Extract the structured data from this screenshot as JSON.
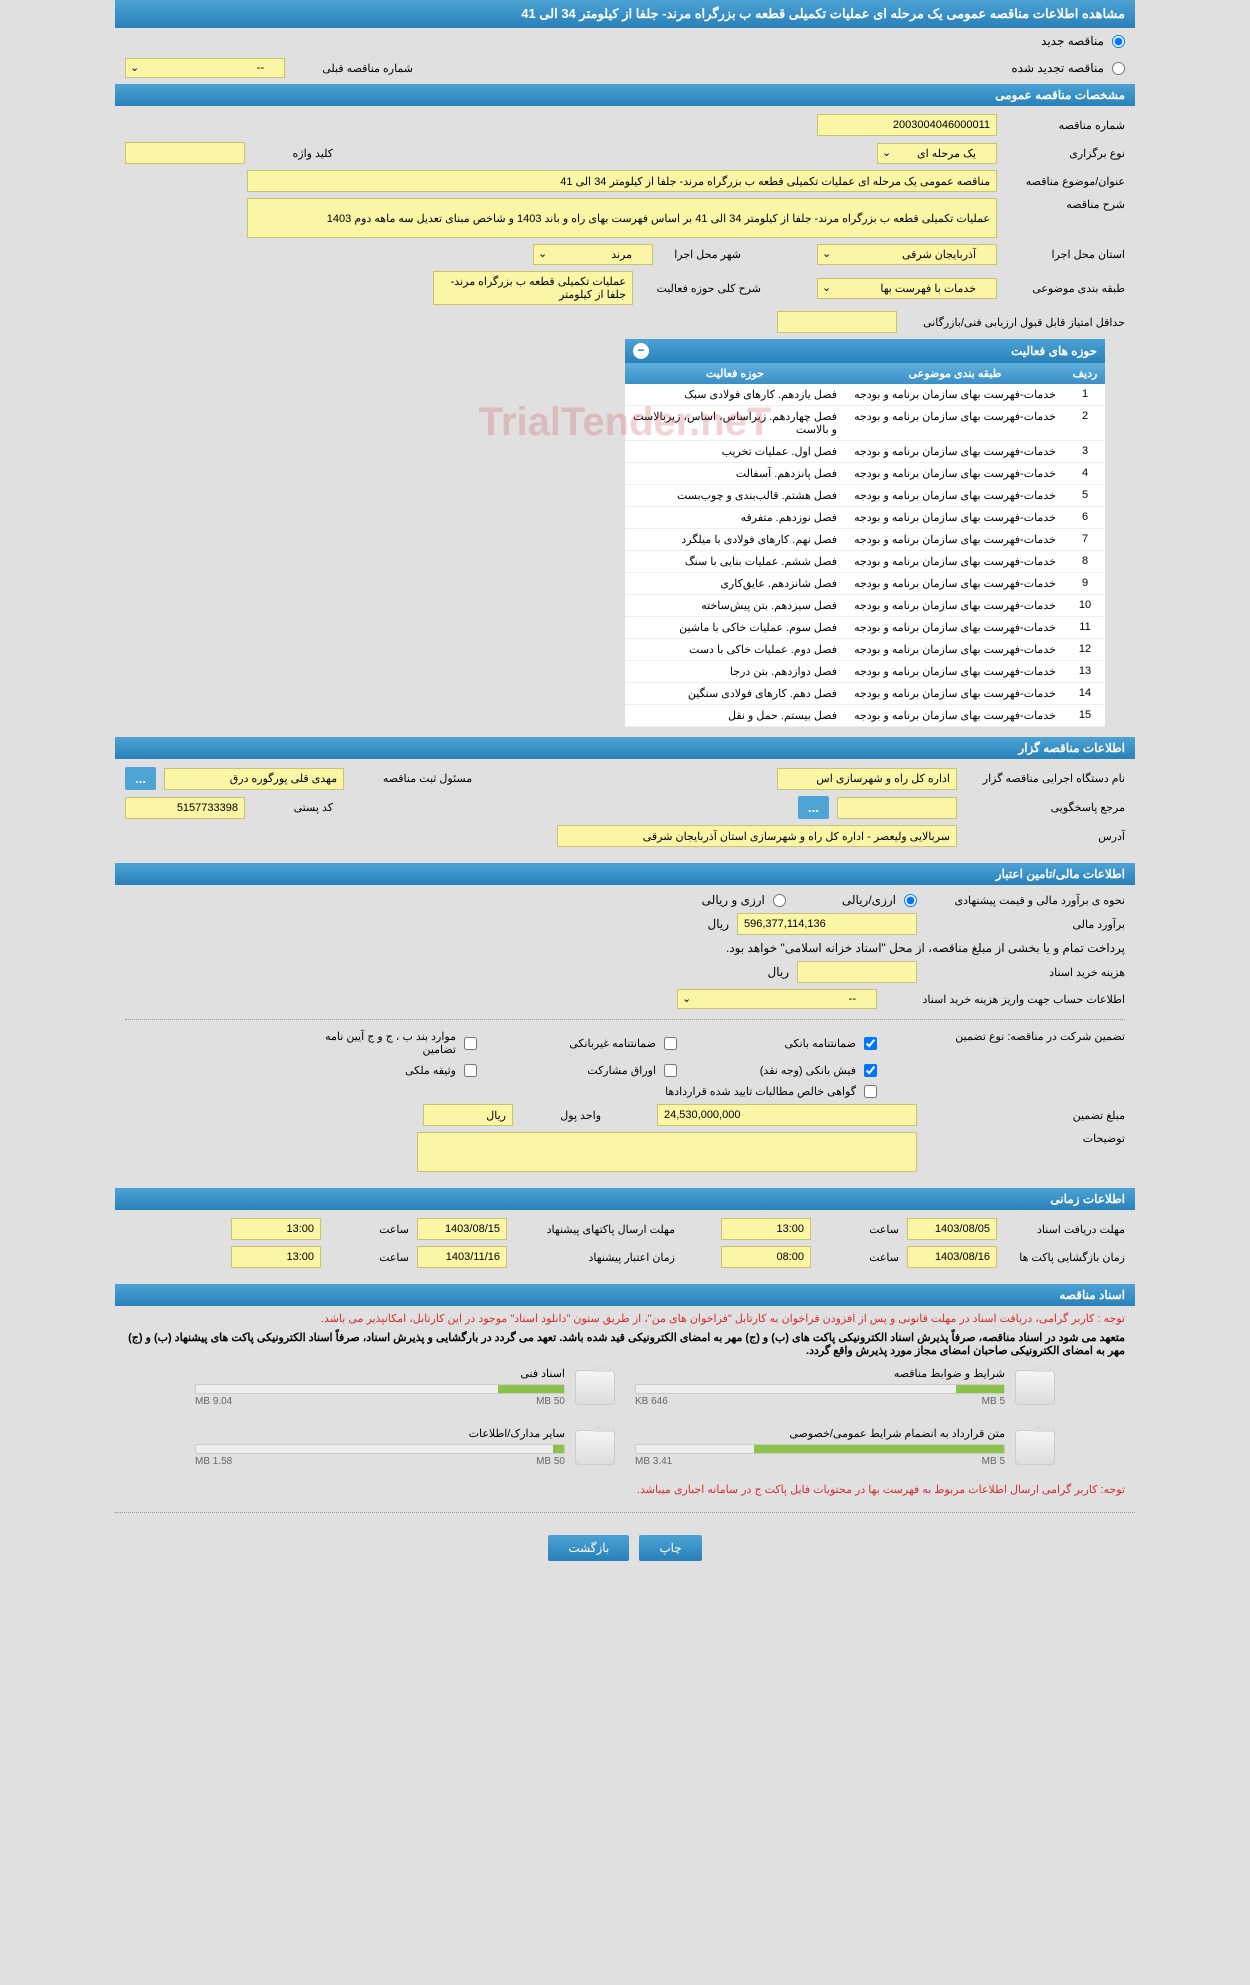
{
  "header": {
    "title": "مشاهده اطلاعات مناقصه عمومی یک مرحله ای عملیات تکمیلی قطعه ب بزرگراه مرند- جلفا از کیلومتر 34 الی 41"
  },
  "tender_type": {
    "new_label": "مناقصه جدید",
    "renewed_label": "مناقصه تجدید شده",
    "prev_number_label": "شماره مناقصه قبلی",
    "prev_number_value": "--"
  },
  "general": {
    "section_title": "مشخصات مناقصه عمومی",
    "number_label": "شماره مناقصه",
    "number_value": "2003004046000011",
    "type_label": "نوع برگزاری",
    "type_value": "یک مرحله ای",
    "keyword_label": "کلید واژه",
    "keyword_value": "",
    "subject_label": "عنوان/موضوع مناقصه",
    "subject_value": "مناقصه عمومی یک مرحله ای عملیات تکمیلی قطعه ب بزرگراه مرند- جلفا از کیلومتر 34 الی 41",
    "desc_label": "شرح مناقصه",
    "desc_value": "عملیات تکمیلی قطعه ب بزرگراه مرند- جلفا از کیلومتر 34 الی 41 بر اساس فهرست بهای راه و باند 1403 و شاخص مبنای تعدیل سه ماهه دوم 1403",
    "province_label": "استان محل اجرا",
    "province_value": "آذربایجان شرقی",
    "city_label": "شهر محل اجرا",
    "city_value": "مرند",
    "category_label": "طبقه بندی موضوعی",
    "category_value": "خدمات با فهرست بها",
    "activity_desc_label": "شرح کلی حوزه فعالیت",
    "activity_desc_value": "عملیات تکمیلی قطعه ب بزرگراه مرند- جلفا از کیلومتر",
    "min_score_label": "حداقل امتیاز قابل قبول ارزیابی فنی/بازرگانی",
    "min_score_value": ""
  },
  "activity_table": {
    "title": "حوزه های فعالیت",
    "col_row": "ردیف",
    "col_category": "طبقه بندی موضوعی",
    "col_activity": "حوزه فعالیت",
    "category_text": "خدمات-فهرست بهای سازمان برنامه و بودجه",
    "rows": [
      {
        "n": "1",
        "act": "فصل یازدهم. کارهای فولادی سبک"
      },
      {
        "n": "2",
        "act": "فصل چهاردهم. زیراساس، اساس، زیربالاست و بالاست"
      },
      {
        "n": "3",
        "act": "فصل اول. عملیات تخریب"
      },
      {
        "n": "4",
        "act": "فصل پانزدهم. آسفالت"
      },
      {
        "n": "5",
        "act": "فصل هشتم. قالب‌بندی و چوب‌بست"
      },
      {
        "n": "6",
        "act": "فصل نوزدهم. متفرقه"
      },
      {
        "n": "7",
        "act": "فصل نهم. کارهای فولادی با میلگرد"
      },
      {
        "n": "8",
        "act": "فصل ششم. عملیات بنایی با سنگ"
      },
      {
        "n": "9",
        "act": "فصل شانزدهم. عایق‌کاری"
      },
      {
        "n": "10",
        "act": "فصل سیزدهم. بتن پیش‌ساخته"
      },
      {
        "n": "11",
        "act": "فصل سوم. عملیات خاکی با ماشین"
      },
      {
        "n": "12",
        "act": "فصل دوم. عملیات خاکی با دست"
      },
      {
        "n": "13",
        "act": "فصل دوازدهم. بتن درجا"
      },
      {
        "n": "14",
        "act": "فصل دهم. کارهای فولادی سنگین"
      },
      {
        "n": "15",
        "act": "فصل بیستم. حمل و نقل"
      }
    ]
  },
  "organizer": {
    "section_title": "اطلاعات مناقصه گزار",
    "org_label": "نام دستگاه اجرایی مناقصه گزار",
    "org_value": "اداره کل راه و شهرسازی اس",
    "responsible_label": "مسئول ثبت مناقصه",
    "responsible_value": "مهدی قلی پورگوره درق",
    "response_ref_label": "مرجع پاسخگویی",
    "response_ref_value": "",
    "postal_label": "کد پستی",
    "postal_value": "5157733398",
    "address_label": "آدرس",
    "address_value": "سربالایی ولیعصر - اداره کل راه و شهرسازی استان آذربایجان شرقی"
  },
  "financial": {
    "section_title": "اطلاعات مالی/تامین اعتبار",
    "method_label": "نحوه ی برآورد مالی و قیمت پیشنهادی",
    "rial_fx_label": "ارزی/ریالی",
    "fx_rial_label": "ارزی و ریالی",
    "estimate_label": "برآورد مالی",
    "estimate_value": "596,377,114,136",
    "rial_unit": "ریال",
    "payment_note": "پرداخت تمام و یا بخشی از مبلغ مناقصه، از محل \"اسناد خزانه اسلامی\" خواهد بود.",
    "doc_cost_label": "هزینه خرید اسناد",
    "doc_cost_value": "",
    "account_label": "اطلاعات حساب جهت واریز هزینه خرید اسناد",
    "account_value": "--",
    "guarantee_type_label": "تضمین شرکت در مناقصه:   نوع تضمین",
    "chk_bank_guarantee": "ضمانتنامه بانکی",
    "chk_nonbank_guarantee": "ضمانتنامه غیربانکی",
    "chk_clause_bj": "موارد بند ب ، ج و ج آیین نامه تضامین",
    "chk_bank_receipt": "فیش بانکی (وجه نقد)",
    "chk_securities": "اوراق مشارکت",
    "chk_property": "وثیقه ملکی",
    "chk_net_receivables": "گواهی خالص مطالبات تایید شده قراردادها",
    "guarantee_amount_label": "مبلغ تضمین",
    "guarantee_amount_value": "24,530,000,000",
    "currency_unit_label": "واحد پول",
    "currency_unit_value": "ریال",
    "notes_label": "توضیحات",
    "notes_value": ""
  },
  "timing": {
    "section_title": "اطلاعات زمانی",
    "doc_receive_label": "مهلت دریافت اسناد",
    "doc_receive_date": "1403/08/05",
    "doc_receive_time": "13:00",
    "packet_send_label": "مهلت ارسال پاکتهای پیشنهاد",
    "packet_send_date": "1403/08/15",
    "packet_send_time": "13:00",
    "packet_open_label": "زمان بازگشایی پاکت ها",
    "packet_open_date": "1403/08/16",
    "packet_open_time": "08:00",
    "validity_label": "زمان اعتبار پیشنهاد",
    "validity_date": "1403/11/16",
    "validity_time": "13:00",
    "time_label": "ساعت"
  },
  "documents": {
    "section_title": "اسناد مناقصه",
    "red_note1": "توجه : کاربر گرامی، دریافت اسناد در مهلت قانونی و پس از افزودن فراخوان به کارتابل \"فراخوان های من\"، از طریق ستون \"دانلود اسناد\" موجود در این کارتابل، امکانپذیر می باشد.",
    "red_note2": "متعهد می شود در اسناد مناقصه، صرفاً پذیرش اسناد الکترونیکی پاکت های (ب) و (ج) مهر به امضای الکترونیکی قید شده باشد. تعهد می گردد در بارگشایی و پذیرش اسناد، صرفاً اسناد الکترونیکی پاکت های پیشنهاد (ب) و (ج) مهر به امضای الکترونیکی صاحبان امضای مجاز مورد پذیرش واقع گردد.",
    "doc1_title": "شرایط و ضوابط مناقصه",
    "doc1_size": "646 KB",
    "doc1_max": "5 MB",
    "doc1_pct": 13,
    "doc2_title": "اسناد فنی",
    "doc2_size": "9.04 MB",
    "doc2_max": "50 MB",
    "doc2_pct": 18,
    "doc3_title": "متن قرارداد به انضمام شرایط عمومی/خصوصی",
    "doc3_size": "3.41 MB",
    "doc3_max": "5 MB",
    "doc3_pct": 68,
    "doc4_title": "سایر مدارک/اطلاعات",
    "doc4_size": "1.58 MB",
    "doc4_max": "50 MB",
    "doc4_pct": 3,
    "red_note3": "توجه: کاربر گرامی ارسال اطلاعات مربوط به فهرست بها در محتویات فایل پاکت ج در سامانه اجباری میباشد."
  },
  "buttons": {
    "print": "چاپ",
    "back": "بازگشت",
    "dots": "..."
  },
  "watermark": "TrialTender.neT",
  "colors": {
    "header_bg": "#2880b8",
    "field_bg": "#fbf5a6",
    "red": "#d32f2f"
  }
}
